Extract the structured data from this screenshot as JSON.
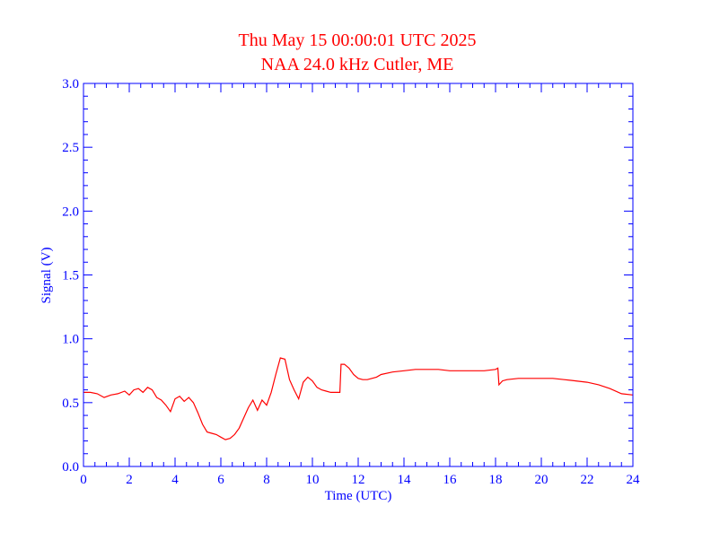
{
  "chart_data": {
    "type": "line",
    "title": "Thu May 15 00:00:01 UTC 2025",
    "subtitle": "NAA 24.0 kHz Cutler, ME",
    "xlabel": "Time (UTC)",
    "ylabel": "Signal (V)",
    "xlim": [
      0,
      24
    ],
    "ylim": [
      0,
      3.0
    ],
    "x_ticks": [
      0,
      2,
      4,
      6,
      8,
      10,
      12,
      14,
      16,
      18,
      20,
      22,
      24
    ],
    "y_ticks": [
      "0.0",
      "0.5",
      "1.0",
      "1.5",
      "2.0",
      "2.5",
      "3.0"
    ],
    "grid": false,
    "colors": {
      "axes": "#0000ff",
      "series": "#ff0000",
      "title": "#ff0000"
    },
    "series": [
      {
        "x": [
          0.0,
          0.3,
          0.6,
          0.9,
          1.2,
          1.5,
          1.8,
          2.0,
          2.2,
          2.4,
          2.6,
          2.8,
          3.0,
          3.2,
          3.4,
          3.6,
          3.8,
          4.0,
          4.2,
          4.4,
          4.6,
          4.8,
          5.0,
          5.2,
          5.4,
          5.6,
          5.8,
          6.0,
          6.2,
          6.4,
          6.6,
          6.8,
          7.0,
          7.2,
          7.4,
          7.6,
          7.8,
          8.0,
          8.2,
          8.4,
          8.6,
          8.8,
          9.0,
          9.2,
          9.4,
          9.6,
          9.8,
          10.0,
          10.2,
          10.4,
          10.6,
          10.8,
          11.0,
          11.2,
          11.25,
          11.4,
          11.6,
          11.8,
          12.0,
          12.2,
          12.4,
          12.6,
          12.8,
          13.0,
          13.5,
          14.0,
          14.5,
          15.0,
          15.5,
          16.0,
          16.5,
          17.0,
          17.5,
          18.0,
          18.1,
          18.15,
          18.2,
          18.3,
          18.5,
          19.0,
          19.5,
          20.0,
          20.5,
          21.0,
          21.5,
          22.0,
          22.5,
          23.0,
          23.5,
          24.0
        ],
        "values": [
          0.58,
          0.58,
          0.57,
          0.54,
          0.56,
          0.57,
          0.59,
          0.56,
          0.6,
          0.61,
          0.58,
          0.62,
          0.6,
          0.54,
          0.52,
          0.48,
          0.43,
          0.53,
          0.55,
          0.51,
          0.54,
          0.5,
          0.42,
          0.33,
          0.27,
          0.26,
          0.25,
          0.23,
          0.21,
          0.22,
          0.25,
          0.3,
          0.38,
          0.46,
          0.52,
          0.44,
          0.52,
          0.48,
          0.58,
          0.72,
          0.85,
          0.84,
          0.68,
          0.6,
          0.53,
          0.66,
          0.7,
          0.67,
          0.62,
          0.6,
          0.59,
          0.58,
          0.58,
          0.58,
          0.8,
          0.8,
          0.77,
          0.72,
          0.69,
          0.68,
          0.68,
          0.69,
          0.7,
          0.72,
          0.74,
          0.75,
          0.76,
          0.76,
          0.76,
          0.75,
          0.75,
          0.75,
          0.75,
          0.76,
          0.77,
          0.64,
          0.65,
          0.67,
          0.68,
          0.69,
          0.69,
          0.69,
          0.69,
          0.68,
          0.67,
          0.66,
          0.64,
          0.61,
          0.57,
          0.56
        ]
      }
    ]
  }
}
